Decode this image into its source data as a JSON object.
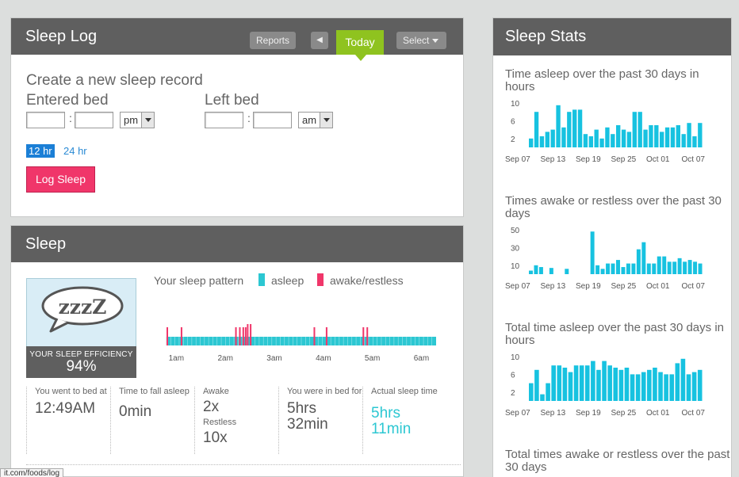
{
  "sleep_log": {
    "title": "Sleep Log",
    "reports_label": "Reports",
    "prev_label": "◀",
    "today_label": "Today",
    "select_label": "Select",
    "create_title": "Create a new sleep record",
    "entered_bed_label": "Entered bed",
    "left_bed_label": "Left bed",
    "entered_ampm": "pm",
    "left_ampm": "am",
    "hr12_label": "12 hr",
    "hr24_label": "24 hr",
    "log_button": "Log Sleep"
  },
  "sleep": {
    "title": "Sleep",
    "bubble_text": "zzzZ",
    "efficiency_label": "YOUR SLEEP EFFICIENCY",
    "efficiency_value": "94%",
    "pattern_title": "Your sleep pattern",
    "legend": [
      {
        "label": "asleep",
        "color": "#2cc7d2"
      },
      {
        "label": "awake/restless",
        "color": "#f0366a"
      }
    ],
    "pattern_ticks": [
      "1am",
      "2am",
      "3am",
      "4am",
      "5am",
      "6am"
    ],
    "pattern": {
      "start_hour": 0.8,
      "end_hour": 6.3,
      "awake_hours": [
        0.8,
        1.09,
        2.2,
        2.28,
        2.35,
        2.4,
        2.44,
        2.5,
        3.8,
        4.05,
        4.8,
        4.88
      ],
      "awake_height": [
        1,
        1,
        1,
        1,
        1,
        1,
        2,
        2,
        1,
        1,
        1,
        1
      ]
    },
    "stats": [
      {
        "label": "You went to bed at",
        "value": "12:49AM"
      },
      {
        "label": "Time to fall asleep",
        "value": "0min"
      },
      {
        "label": "Awake",
        "value": "2x",
        "label2": "Restless",
        "value2": "10x"
      },
      {
        "label": "You were in bed for",
        "value": "5hrs 32min"
      },
      {
        "label": "Actual sleep time",
        "value": "5hrs 11min",
        "highlight": true
      }
    ]
  },
  "sleep_stats": {
    "title": "Sleep Stats",
    "accent": "#17c2e0"
  },
  "chart_data": [
    {
      "type": "bar",
      "title": "Time asleep over the past 30 days in hours",
      "yticks": [
        10,
        6,
        2
      ],
      "ylim": [
        0,
        10
      ],
      "xticks": [
        "Sep 07",
        "Sep 13",
        "Sep 19",
        "Sep 25",
        "Oct 01",
        "Oct 07"
      ],
      "values": [
        2,
        8,
        2.5,
        3.5,
        4,
        9.5,
        4.5,
        8,
        8.5,
        8.5,
        3,
        2.5,
        4,
        2,
        4.5,
        3,
        5,
        4,
        3.5,
        8,
        8,
        4,
        5,
        5,
        3.5,
        4.5,
        4.5,
        5,
        3,
        5.5,
        2.5,
        5.5
      ]
    },
    {
      "type": "bar",
      "title": "Times awake or restless over the past 30 days",
      "yticks": [
        50,
        30,
        10
      ],
      "ylim": [
        0,
        50
      ],
      "xticks": [
        "Sep 07",
        "Sep 13",
        "Sep 19",
        "Sep 25",
        "Oct 01",
        "Oct 07"
      ],
      "values": [
        4,
        10,
        8,
        0,
        7,
        0,
        0,
        6,
        0,
        0,
        0,
        0,
        48,
        10,
        6,
        12,
        12,
        16,
        8,
        12,
        12,
        28,
        36,
        12,
        12,
        20,
        20,
        14,
        14,
        18,
        14,
        16,
        14,
        12
      ]
    },
    {
      "type": "bar",
      "title": "Total time asleep over the past 30 days in hours",
      "yticks": [
        10,
        6,
        2
      ],
      "ylim": [
        0,
        10
      ],
      "xticks": [
        "Sep 07",
        "Sep 13",
        "Sep 19",
        "Sep 25",
        "Oct 01",
        "Oct 07"
      ],
      "values": [
        4,
        7,
        1.5,
        4,
        8,
        8,
        7.5,
        6.5,
        8,
        8,
        8,
        9,
        7,
        9,
        8,
        7.5,
        7,
        7.5,
        6,
        6,
        6.5,
        7,
        7.5,
        6.5,
        6,
        6,
        8.5,
        9.5,
        6,
        6.5,
        7
      ]
    },
    {
      "type": "bar",
      "title": "Total times awake or restless over the past 30 days",
      "yticks": [],
      "xticks": [],
      "values": []
    }
  ],
  "status_url": "it.com/foods/log"
}
